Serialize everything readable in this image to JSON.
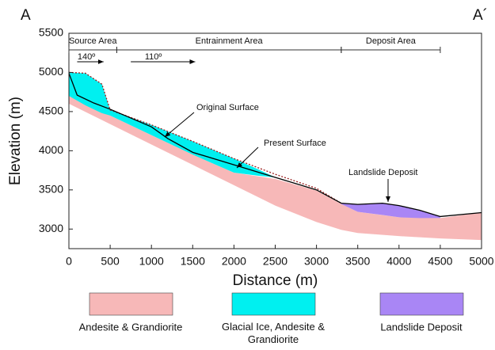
{
  "chart_data": {
    "type": "cross-section",
    "corner_labels": [
      "A",
      "A´"
    ],
    "x_label": "Distance (m)",
    "y_label": "Elevation (m)",
    "xlim": [
      0,
      5000
    ],
    "ylim": [
      2750,
      5500
    ],
    "xticks": [
      0,
      500,
      1000,
      1500,
      2000,
      2500,
      3000,
      3500,
      4000,
      4500,
      5000
    ],
    "yticks": [
      3000,
      3500,
      4000,
      4500,
      5000,
      5500
    ],
    "zones": [
      {
        "label": "Source Area",
        "start": 0,
        "end": 580
      },
      {
        "label": "Entrainment Area",
        "start": 580,
        "end": 3300
      },
      {
        "label": "Deposit Area",
        "start": 3300,
        "end": 4500
      }
    ],
    "directions": [
      {
        "label": "140º",
        "start": 100,
        "end": 420
      },
      {
        "label": "110º",
        "start": 750,
        "end": 1530
      }
    ],
    "layers": [
      {
        "name": "Andesite & Grandiorite",
        "color": "#f7b8b8",
        "x": [
          0,
          500,
          1000,
          1500,
          2000,
          2500,
          3000,
          3300,
          3500,
          4000,
          4500,
          5000
        ],
        "top": [
          4700,
          4450,
          4200,
          3950,
          3720,
          3640,
          3490,
          3320,
          3220,
          3150,
          3140,
          3210
        ],
        "bottom": [
          4600,
          4340,
          4080,
          3820,
          3560,
          3300,
          3090,
          2990,
          2950,
          2910,
          2880,
          2860
        ]
      },
      {
        "name": "Glacial Ice, Andesite & Grandiorite",
        "color": "#00f0f0",
        "x": [
          0,
          200,
          400,
          500,
          1000,
          1500,
          2000,
          2300,
          2500
        ],
        "top": [
          5000,
          4990,
          4850,
          4520,
          4330,
          4120,
          3900,
          3760,
          3660
        ],
        "bottom": [
          4700,
          4580,
          4480,
          4450,
          4200,
          3950,
          3720,
          3680,
          3660
        ]
      },
      {
        "name": "Landslide Deposit",
        "color": "#a986f5",
        "x": [
          3300,
          3500,
          3800,
          4000,
          4250,
          4500
        ],
        "top": [
          3330,
          3310,
          3330,
          3300,
          3240,
          3160
        ],
        "bottom": [
          3320,
          3220,
          3180,
          3150,
          3140,
          3140
        ]
      }
    ],
    "series": [
      {
        "name": "Original Surface",
        "color": "#9a1f1f",
        "dash": "2 2",
        "x": [
          0,
          200,
          400,
          500,
          1000,
          1500,
          2000,
          2500,
          3000,
          3300
        ],
        "values": [
          5000,
          4990,
          4850,
          4520,
          4330,
          4120,
          3900,
          3700,
          3520,
          3330
        ]
      },
      {
        "name": "Present Surface",
        "color": "#000000",
        "dash": "none",
        "x": [
          0,
          100,
          300,
          500,
          1000,
          1200,
          1500,
          2000,
          2500,
          3000,
          3300,
          3500,
          3800,
          4000,
          4250,
          4500,
          5000
        ],
        "values": [
          4990,
          4710,
          4610,
          4530,
          4305,
          4155,
          3980,
          3820,
          3660,
          3500,
          3330,
          3315,
          3330,
          3300,
          3240,
          3160,
          3210
        ]
      }
    ],
    "annotations": [
      "Original Surface",
      "Present Surface",
      "Landslide Deposit"
    ]
  }
}
